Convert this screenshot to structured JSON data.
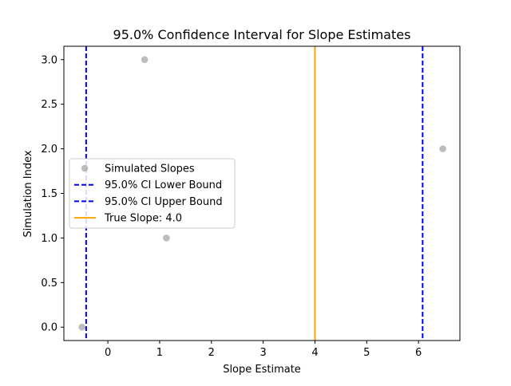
{
  "chart_data": {
    "type": "scatter",
    "title": "95.0% Confidence Interval for Slope Estimates",
    "xlabel": "Slope Estimate",
    "ylabel": "Simulation Index",
    "xlim": [
      -0.85,
      6.8
    ],
    "ylim": [
      -0.15,
      3.15
    ],
    "x_ticks": [
      0,
      1,
      2,
      3,
      4,
      5,
      6
    ],
    "x_tick_labels": [
      "0",
      "1",
      "2",
      "3",
      "4",
      "5",
      "6"
    ],
    "y_ticks": [
      0,
      0.5,
      1,
      1.5,
      2,
      2.5,
      3
    ],
    "y_tick_labels": [
      "0.0",
      "0.5",
      "1.0",
      "1.5",
      "2.0",
      "2.5",
      "3.0"
    ],
    "grid": false,
    "legend_placement": "center-left",
    "series": [
      {
        "name": "Simulated Slopes",
        "kind": "scatter",
        "color": "#999999",
        "points": [
          {
            "x": -0.5,
            "y": 0
          },
          {
            "x": 1.13,
            "y": 1
          },
          {
            "x": 6.47,
            "y": 2
          },
          {
            "x": 0.71,
            "y": 3
          }
        ]
      }
    ],
    "vlines": [
      {
        "name": "95.0% CI Lower Bound",
        "x": -0.42,
        "color": "#0000ff",
        "style": "dashed"
      },
      {
        "name": "95.0% CI Upper Bound",
        "x": 6.08,
        "color": "#0000ff",
        "style": "dashed"
      },
      {
        "name": "True Slope: 4.0",
        "x": 4.0,
        "color": "#ffa500",
        "style": "solid"
      }
    ],
    "legend": [
      {
        "label": "Simulated Slopes",
        "kind": "marker",
        "color": "#999999"
      },
      {
        "label": "95.0% CI Lower Bound",
        "kind": "dashed",
        "color": "#0000ff"
      },
      {
        "label": "95.0% CI Upper Bound",
        "kind": "dashed",
        "color": "#0000ff"
      },
      {
        "label": "True Slope: 4.0",
        "kind": "solid",
        "color": "#ffa500"
      }
    ]
  }
}
